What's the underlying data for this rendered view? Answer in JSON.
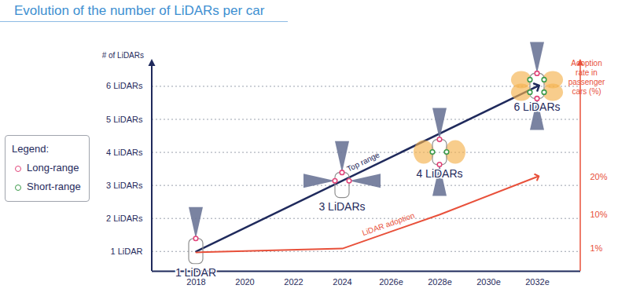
{
  "chart_data": {
    "type": "line",
    "title": "Evolution of the number of LiDARs per car",
    "categories": [
      "2018",
      "2020",
      "2022",
      "2024",
      "2026e",
      "2028e",
      "2030e",
      "2032e"
    ],
    "y_label": "# of LiDARs",
    "ylim": [
      0.4,
      6.7
    ],
    "yticks": [
      {
        "value": 1,
        "label": "1 LiDAR"
      },
      {
        "value": 2,
        "label": "2 LiDARs"
      },
      {
        "value": 3,
        "label": "3 LiDARs"
      },
      {
        "value": 4,
        "label": "4 LiDARs"
      },
      {
        "value": 5,
        "label": "5 LiDARs"
      },
      {
        "value": 6,
        "label": "6 LiDARs"
      }
    ],
    "y2_label": "Adoption rate in passenger cars (%)",
    "y2lim": [
      -5,
      50
    ],
    "y2ticks": [
      {
        "value": 1,
        "label": "1%"
      },
      {
        "value": 10,
        "label": "10%"
      },
      {
        "value": 20,
        "label": "20%"
      }
    ],
    "grid": true,
    "legend": "left",
    "legend_title": "Legend:",
    "series": [
      {
        "name": "Top range",
        "color": "#1f2a5c",
        "marker": "arrow",
        "x": [
          "2018",
          "2032e"
        ],
        "values": [
          1,
          6
        ]
      },
      {
        "name": "LiDAR adoption",
        "color": "#e8503a",
        "marker": "arrow",
        "axis": "y2",
        "x": [
          "2018",
          "2024",
          "2028e",
          "2032e"
        ],
        "values": [
          0,
          1,
          10,
          20
        ]
      }
    ],
    "sensor_types": [
      {
        "name": "Long-range",
        "color": "#e2457a"
      },
      {
        "name": "Short-range",
        "color": "#3c9a4a"
      }
    ],
    "cars": [
      {
        "x": "2018",
        "lidars": 1,
        "long_range": 1,
        "short_range": 0,
        "label": "1 LiDAR"
      },
      {
        "x": "2024",
        "lidars": 3,
        "long_range": 3,
        "short_range": 0,
        "label": "3 LiDARs"
      },
      {
        "x": "2028e",
        "lidars": 4,
        "long_range": 2,
        "short_range": 2,
        "label": "4 LiDARs"
      },
      {
        "x": "2032e",
        "lidars": 6,
        "long_range": 2,
        "short_range": 4,
        "label": "6 LiDARs"
      }
    ]
  }
}
